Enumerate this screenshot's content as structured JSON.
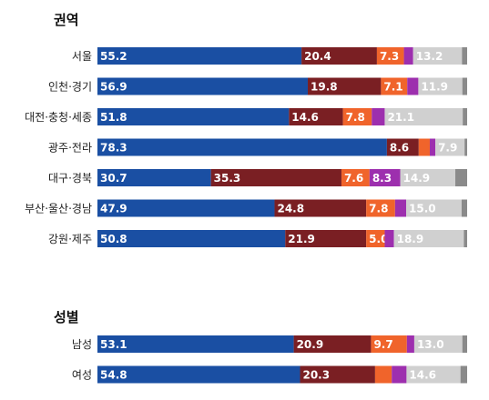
{
  "chart_data": [
    {
      "type": "bar",
      "orientation": "horizontal",
      "stacked": true,
      "title": "권역",
      "categories": [
        "서울",
        "인천·경기",
        "대전·충청·세종",
        "광주·전라",
        "대구·경북",
        "부산·울산·경남",
        "강원·제주"
      ],
      "series": [
        {
          "values": [
            55.2,
            56.9,
            51.8,
            78.3,
            30.7,
            47.9,
            50.8
          ],
          "labels": [
            "55.2",
            "56.9",
            "51.8",
            "78.3",
            "30.7",
            "47.9",
            "50.8"
          ]
        },
        {
          "values": [
            20.4,
            19.8,
            14.6,
            8.6,
            35.3,
            24.8,
            21.9
          ],
          "labels": [
            "20.4",
            "19.8",
            "14.6",
            "8.6",
            "35.3",
            "24.8",
            "21.9"
          ]
        },
        {
          "values": [
            7.3,
            7.1,
            7.8,
            3.0,
            7.6,
            7.8,
            5.0
          ],
          "labels": [
            "7.3",
            "7.1",
            "7.8",
            "",
            "7.6",
            "7.8",
            "5.0"
          ]
        },
        {
          "values": [
            2.5,
            3.0,
            3.5,
            1.5,
            8.3,
            3.0,
            2.5
          ],
          "labels": [
            "",
            "",
            "",
            "",
            "8.3",
            "",
            ""
          ]
        },
        {
          "values": [
            13.2,
            11.9,
            21.1,
            7.9,
            14.9,
            15.0,
            18.9
          ],
          "labels": [
            "13.2",
            "11.9",
            "21.1",
            "7.9",
            "14.9",
            "15.0",
            "18.9"
          ]
        },
        {
          "values": [
            1.4,
            1.3,
            1.2,
            0.7,
            3.2,
            1.5,
            0.9
          ],
          "labels": [
            "",
            "",
            "",
            "",
            "",
            "",
            ""
          ]
        }
      ],
      "xlim": [
        0,
        100
      ]
    },
    {
      "type": "bar",
      "orientation": "horizontal",
      "stacked": true,
      "title": "성별",
      "categories": [
        "남성",
        "여성"
      ],
      "series": [
        {
          "values": [
            53.1,
            54.8
          ],
          "labels": [
            "53.1",
            "54.8"
          ]
        },
        {
          "values": [
            20.9,
            20.3
          ],
          "labels": [
            "20.9",
            "20.3"
          ]
        },
        {
          "values": [
            9.7,
            4.5
          ],
          "labels": [
            "9.7",
            ""
          ]
        },
        {
          "values": [
            2.0,
            4.0
          ],
          "labels": [
            "",
            ""
          ]
        },
        {
          "values": [
            13.0,
            14.6
          ],
          "labels": [
            "13.0",
            "14.6"
          ]
        },
        {
          "values": [
            1.3,
            1.8
          ],
          "labels": [
            "",
            ""
          ]
        }
      ],
      "xlim": [
        0,
        100
      ]
    }
  ],
  "colors": {
    "segments": [
      "#1a4fa3",
      "#7a1f23",
      "#f0642b",
      "#9d2fae",
      "#d0d0d0",
      "#8a8a8a"
    ],
    "label_dark": "#ffffff",
    "label_light": "#ffffff"
  }
}
